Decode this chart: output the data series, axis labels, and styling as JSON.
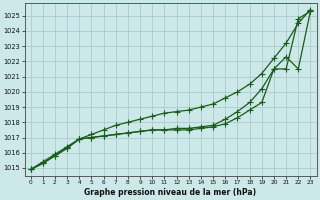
{
  "xlabel": "Graphe pression niveau de la mer (hPa)",
  "bg_color": "#cce8e8",
  "grid_color": "#aacccc",
  "line_color": "#1a5c1a",
  "ylim": [
    1014.5,
    1025.8
  ],
  "yticks": [
    1015,
    1016,
    1017,
    1018,
    1019,
    1020,
    1021,
    1022,
    1023,
    1024,
    1025
  ],
  "xlim": [
    -0.5,
    23.5
  ],
  "xticks": [
    0,
    1,
    2,
    3,
    4,
    5,
    6,
    7,
    8,
    9,
    10,
    11,
    12,
    13,
    14,
    15,
    16,
    17,
    18,
    19,
    20,
    21,
    22,
    23
  ],
  "line1_x": [
    0,
    1,
    2,
    3,
    4,
    5,
    6,
    7,
    8,
    9,
    10,
    11,
    12,
    13,
    14,
    15,
    16,
    17,
    18,
    19,
    20,
    21,
    22,
    23
  ],
  "line1_y": [
    1014.9,
    1015.4,
    1015.9,
    1016.4,
    1016.9,
    1017.2,
    1017.5,
    1017.8,
    1018.0,
    1018.2,
    1018.4,
    1018.6,
    1018.7,
    1018.8,
    1019.0,
    1019.2,
    1019.6,
    1020.0,
    1020.5,
    1021.2,
    1022.2,
    1023.2,
    1024.5,
    1025.4
  ],
  "line2_x": [
    0,
    1,
    2,
    3,
    4,
    5,
    6,
    7,
    8,
    9,
    10,
    11,
    12,
    13,
    14,
    15,
    16,
    17,
    18,
    19,
    20,
    21,
    22,
    23
  ],
  "line2_y": [
    1014.9,
    1015.3,
    1015.8,
    1016.3,
    1016.9,
    1017.0,
    1017.1,
    1017.2,
    1017.3,
    1017.4,
    1017.5,
    1017.5,
    1017.6,
    1017.6,
    1017.7,
    1017.8,
    1018.2,
    1018.7,
    1019.3,
    1020.2,
    1021.5,
    1021.5,
    1024.8,
    1025.3
  ],
  "line3_x": [
    0,
    1,
    2,
    3,
    4,
    5,
    6,
    7,
    8,
    9,
    10,
    11,
    12,
    13,
    14,
    15,
    16,
    17,
    18,
    19,
    20,
    21,
    22,
    23
  ],
  "line3_y": [
    1014.9,
    1015.3,
    1015.8,
    1016.3,
    1016.9,
    1017.0,
    1017.1,
    1017.2,
    1017.3,
    1017.4,
    1017.5,
    1017.5,
    1017.5,
    1017.5,
    1017.6,
    1017.7,
    1017.9,
    1018.3,
    1018.8,
    1019.3,
    1021.5,
    1022.3,
    1021.5,
    1025.3
  ]
}
